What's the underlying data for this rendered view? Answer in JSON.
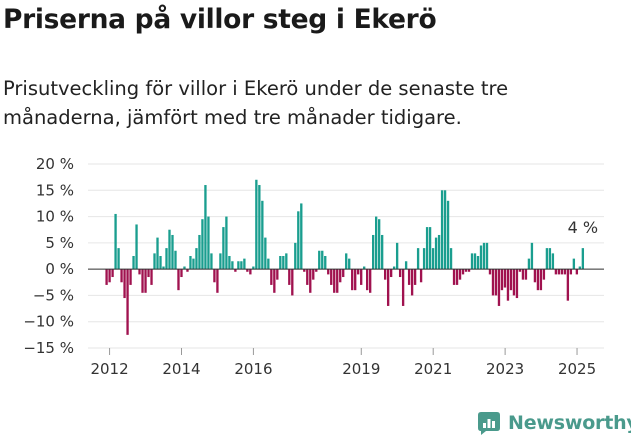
{
  "title": "Priserna på villor steg i Ekerö",
  "subtitle": "Prisutveckling för villor i Ekerö under de senaste tre månaderna, jämfört med tre månader tidigare.",
  "brand": "Newsworthy",
  "colors": {
    "positive": "#1a9e8f",
    "negative": "#a0124f",
    "axis": "#999999",
    "text": "#333333",
    "brand": "#4a9a8c"
  },
  "chart_data": {
    "type": "bar",
    "ylim": [
      -15,
      20
    ],
    "yticks": [
      20,
      15,
      10,
      5,
      0,
      -5,
      -10,
      -15
    ],
    "ytick_labels": [
      "20 %",
      "15 %",
      "10 %",
      "5 %",
      "0 %",
      "−5 %",
      "−10 %",
      "−15 %"
    ],
    "x_start": 2011.917,
    "x_step": 0.0833,
    "xlim": [
      2011.4,
      2025.75
    ],
    "xticks": [
      2012,
      2014,
      2016,
      2019,
      2021,
      2023,
      2025
    ],
    "xtick_labels": [
      "2012",
      "2014",
      "2016",
      "2019",
      "2021",
      "2023",
      "2025"
    ],
    "values": [
      -3,
      -2.5,
      -1.5,
      10.5,
      4,
      -2.5,
      -5.5,
      -12.5,
      -3,
      2.5,
      8.5,
      -1,
      -4.5,
      -4.5,
      -1.5,
      -3,
      3,
      6,
      2.5,
      0.5,
      4,
      7.5,
      6.5,
      3.5,
      -4,
      -1.5,
      0.5,
      -0.5,
      2.5,
      2,
      4,
      6.5,
      9.5,
      16,
      10,
      3,
      -2.5,
      -4.5,
      3,
      8,
      10,
      2.5,
      1.5,
      -0.5,
      1.5,
      1.5,
      2,
      -0.5,
      -1,
      0.5,
      17,
      16,
      13,
      6,
      2,
      -3,
      -4.5,
      -2,
      2.5,
      2.5,
      3,
      -3,
      -5,
      5,
      11,
      12.5,
      -0.5,
      -3,
      -4.5,
      -2,
      -0.5,
      3.5,
      3.5,
      2.5,
      -1,
      -3,
      -4.5,
      -4.5,
      -2.5,
      -1.5,
      3,
      2,
      -4,
      -4,
      -1,
      -3,
      0.5,
      -4,
      -4.5,
      6.5,
      10,
      9.5,
      6.5,
      -2,
      -7,
      -1.5,
      0.5,
      5,
      -1.5,
      -7,
      1.5,
      -3,
      -5,
      -3,
      4,
      -2.5,
      4,
      8,
      8,
      4,
      6,
      6.5,
      15,
      15,
      13,
      4,
      -3,
      -3,
      -2,
      -1,
      -0.5,
      -0.5,
      3,
      3,
      2.5,
      4.5,
      5,
      5,
      -1,
      -5,
      -5,
      -7,
      -4,
      -3.5,
      -6,
      -4,
      -5,
      -5.5,
      -0.5,
      -2,
      -2,
      2,
      5,
      -2.5,
      -4,
      -4,
      -2,
      4,
      4,
      3,
      -1,
      -1,
      -1,
      -1,
      -6,
      -1,
      2,
      -1,
      0.5,
      4
    ],
    "annotation": {
      "label": "4 %",
      "value": 4
    }
  }
}
